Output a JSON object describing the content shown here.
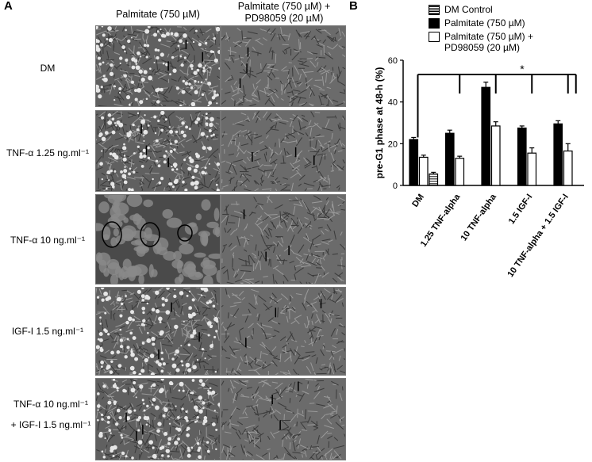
{
  "panel_a": {
    "letter": "A",
    "columns": [
      "Palmitate (750 µM)",
      "Palmitate (750 µM) +",
      "PD98059 (20 µM)"
    ],
    "rows": [
      {
        "label": "DM"
      },
      {
        "label": "TNF-α 1.25 ng.ml⁻¹"
      },
      {
        "label": "TNF-α 10 ng.ml⁻¹"
      },
      {
        "label": "IGF-I 1.5 ng.ml⁻¹"
      },
      {
        "label": "TNF-α 10 ng.ml⁻¹",
        "label2": "+ IGF-I 1.5 ng.ml⁻¹"
      }
    ]
  },
  "panel_b": {
    "letter": "B",
    "legend": [
      {
        "name": "DM Control",
        "style": "striped"
      },
      {
        "name": "Palmitate (750 µM)",
        "style": "black"
      },
      {
        "name": "Palmitate (750 µM) +",
        "name2": "PD98059 (20 µM)",
        "style": "white"
      }
    ],
    "significance": "*"
  },
  "chart_data": {
    "type": "bar",
    "ylabel": "pre-G1 phase at 48-h (%)",
    "ylim": [
      0,
      60
    ],
    "yticks": [
      0,
      20,
      40,
      60
    ],
    "categories": [
      "DM",
      "1.25 TNF-alpha",
      "10 TNF-alpha",
      "1.5 IGF-I",
      "10 TNF-alpha + 1.5 IGF-I"
    ],
    "series": [
      {
        "name": "DM Control",
        "values": [
          5.5,
          null,
          null,
          null,
          null
        ],
        "errors": [
          0.8,
          null,
          null,
          null,
          null
        ]
      },
      {
        "name": "Palmitate (750 µM)",
        "values": [
          22,
          25,
          47,
          27.5,
          29.5
        ],
        "errors": [
          1,
          1.5,
          2.5,
          1,
          1.5
        ]
      },
      {
        "name": "Palmitate (750 µM) + PD98059 (20 µM)",
        "values": [
          13.5,
          13,
          28.5,
          15.5,
          16.5
        ],
        "errors": [
          1,
          1,
          2,
          2.5,
          3.5
        ]
      }
    ],
    "colors": {
      "striped": "#555555",
      "black": "#000000",
      "white": "#ffffff"
    }
  }
}
